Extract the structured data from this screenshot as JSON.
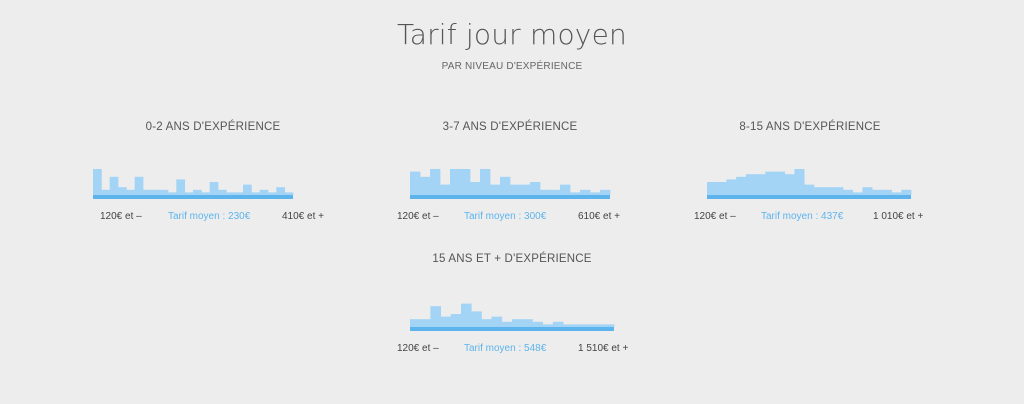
{
  "header": {
    "title": "Tarif jour moyen",
    "subtitle": "PAR NIVEAU D'EXPÉRIENCE"
  },
  "colors": {
    "bar": "#a3d4f5",
    "baseline": "#5db4ec",
    "average_text": "#5db4ec"
  },
  "chart_data": [
    {
      "type": "bar",
      "title": "0-2 ANS D'EXPÉRIENCE",
      "min_label": "120€ et –",
      "average_label": "Tarif moyen : 230€",
      "max_label": "410€ et +",
      "values": [
        10,
        2,
        7,
        3,
        2,
        7,
        2,
        2,
        2,
        1,
        6,
        1,
        2,
        1,
        5,
        2,
        1,
        1,
        4,
        1,
        2,
        1,
        3,
        1
      ],
      "ylim": [
        0,
        10
      ]
    },
    {
      "type": "bar",
      "title": "3-7 ANS D'EXPÉRIENCE",
      "min_label": "120€ et –",
      "average_label": "Tarif moyen : 300€",
      "max_label": "610€ et +",
      "values": [
        9,
        7,
        10,
        4,
        10,
        10,
        5,
        10,
        4,
        7,
        4,
        4,
        5,
        2,
        2,
        4,
        1,
        2,
        1,
        2
      ],
      "ylim": [
        0,
        10
      ]
    },
    {
      "type": "bar",
      "title": "8-15 ANS D'EXPÉRIENCE",
      "min_label": "120€ et –",
      "average_label": "Tarif moyen : 437€",
      "max_label": "1 010€ et +",
      "values": [
        5,
        5,
        6,
        7,
        8,
        8,
        9,
        9,
        8,
        10,
        4,
        3,
        3,
        3,
        2,
        1,
        3,
        2,
        2,
        1,
        2
      ],
      "ylim": [
        0,
        10
      ]
    },
    {
      "type": "bar",
      "title": "15 ANS ET + D'EXPÉRIENCE",
      "min_label": "120€ et –",
      "average_label": "Tarif moyen : 548€",
      "max_label": "1 510€ et +",
      "values": [
        3,
        3,
        8,
        4,
        5,
        9,
        6,
        3,
        4,
        2,
        3,
        3,
        2,
        1,
        2,
        1,
        1,
        1,
        1,
        1
      ],
      "ylim": [
        0,
        10
      ]
    }
  ]
}
